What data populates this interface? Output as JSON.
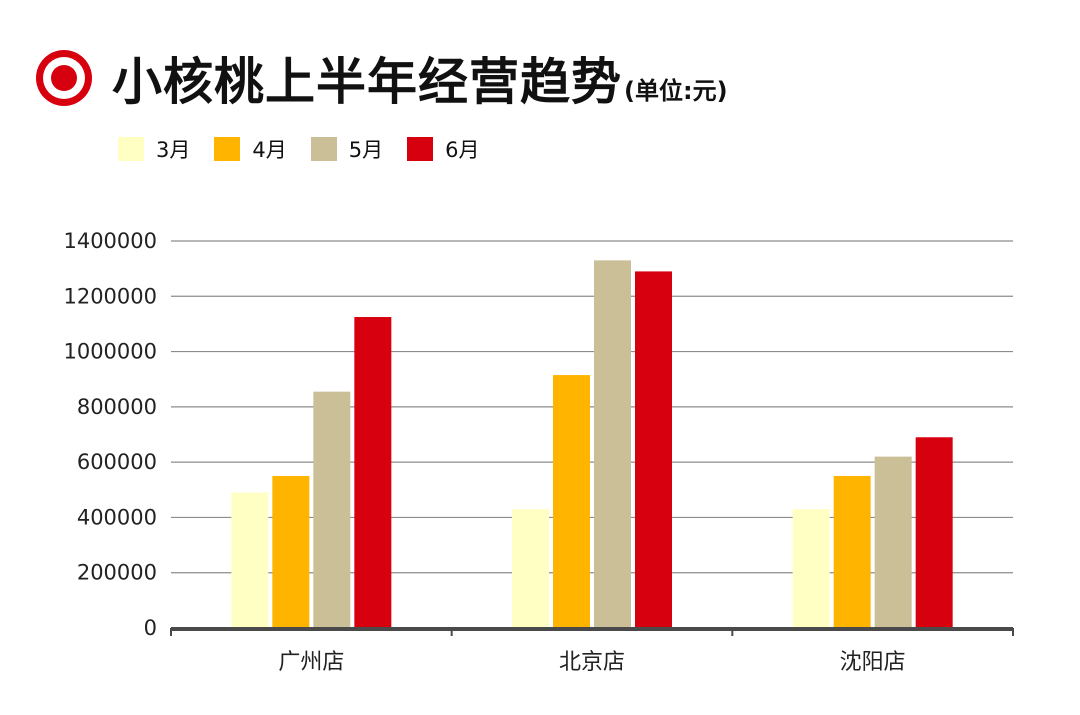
{
  "header": {
    "title": "小核桃上半年经营趋势",
    "unit": "(单位:元)"
  },
  "chart_data": {
    "type": "bar",
    "categories": [
      "广州店",
      "北京店",
      "沈阳店"
    ],
    "series": [
      {
        "name": "3月",
        "color": "#ffffc4",
        "values": [
          490000,
          430000,
          430000
        ]
      },
      {
        "name": "4月",
        "color": "#ffb400",
        "values": [
          550000,
          915000,
          550000
        ]
      },
      {
        "name": "5月",
        "color": "#cbbf98",
        "values": [
          855000,
          1330000,
          620000
        ]
      },
      {
        "name": "6月",
        "color": "#d7000f",
        "values": [
          1125000,
          1290000,
          690000
        ]
      }
    ],
    "yticks": [
      "0",
      "200000",
      "400000",
      "600000",
      "800000",
      "1000000",
      "1200000",
      "1400000"
    ],
    "ylim": [
      0,
      1400000
    ],
    "grid": true,
    "legend_position": "top-left"
  }
}
